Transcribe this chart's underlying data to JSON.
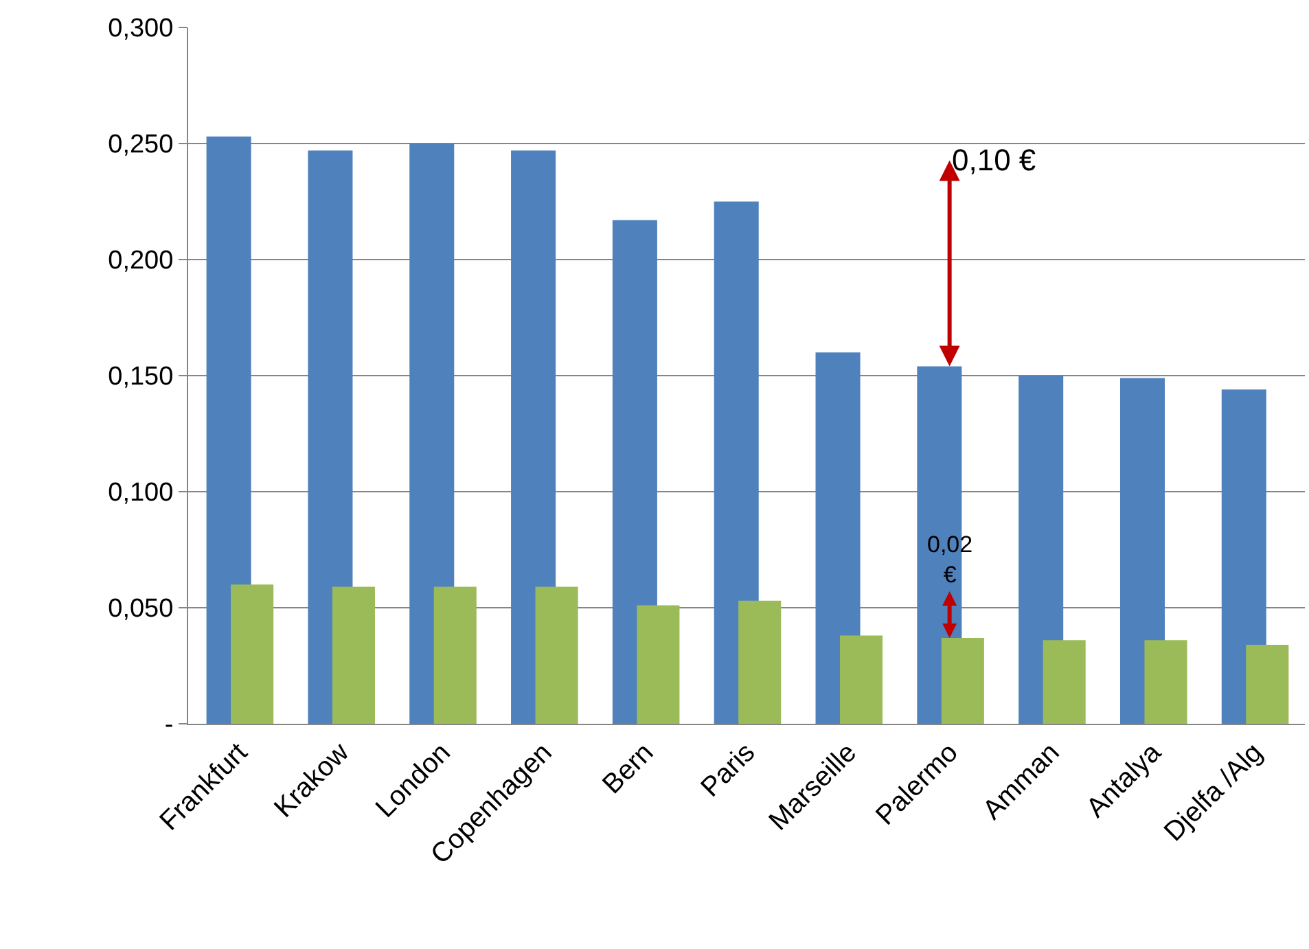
{
  "chart_data": {
    "type": "bar",
    "categories": [
      "Frankfurt",
      "Krakow",
      "London",
      "Copenhagen",
      "Bern",
      "Paris",
      "Marseille",
      "Palermo",
      "Amman",
      "Antalya",
      "Djelfa /Alg"
    ],
    "series": [
      {
        "color": "#4f81bd",
        "values": [
          0.253,
          0.247,
          0.25,
          0.247,
          0.217,
          0.225,
          0.16,
          0.154,
          0.15,
          0.149,
          0.144
        ]
      },
      {
        "color": "#9bbb59",
        "values": [
          0.06,
          0.059,
          0.059,
          0.059,
          0.051,
          0.053,
          0.038,
          0.037,
          0.036,
          0.036,
          0.034
        ]
      }
    ],
    "ylim": [
      0,
      0.3
    ],
    "yticks": [
      {
        "value": 0,
        "label": "-"
      },
      {
        "value": 0.05,
        "label": "0,050"
      },
      {
        "value": 0.1,
        "label": "0,100"
      },
      {
        "value": 0.15,
        "label": "0,150"
      },
      {
        "value": 0.2,
        "label": "0,200"
      },
      {
        "value": 0.25,
        "label": "0,250"
      },
      {
        "value": 0.3,
        "label": "0,300"
      }
    ],
    "grid": "y",
    "annotations": [
      {
        "text": "0,10 €",
        "x": "Palermo",
        "y": 0.154
      },
      {
        "text": "0,02 €",
        "x": "Palermo",
        "y": 0.037
      }
    ]
  }
}
